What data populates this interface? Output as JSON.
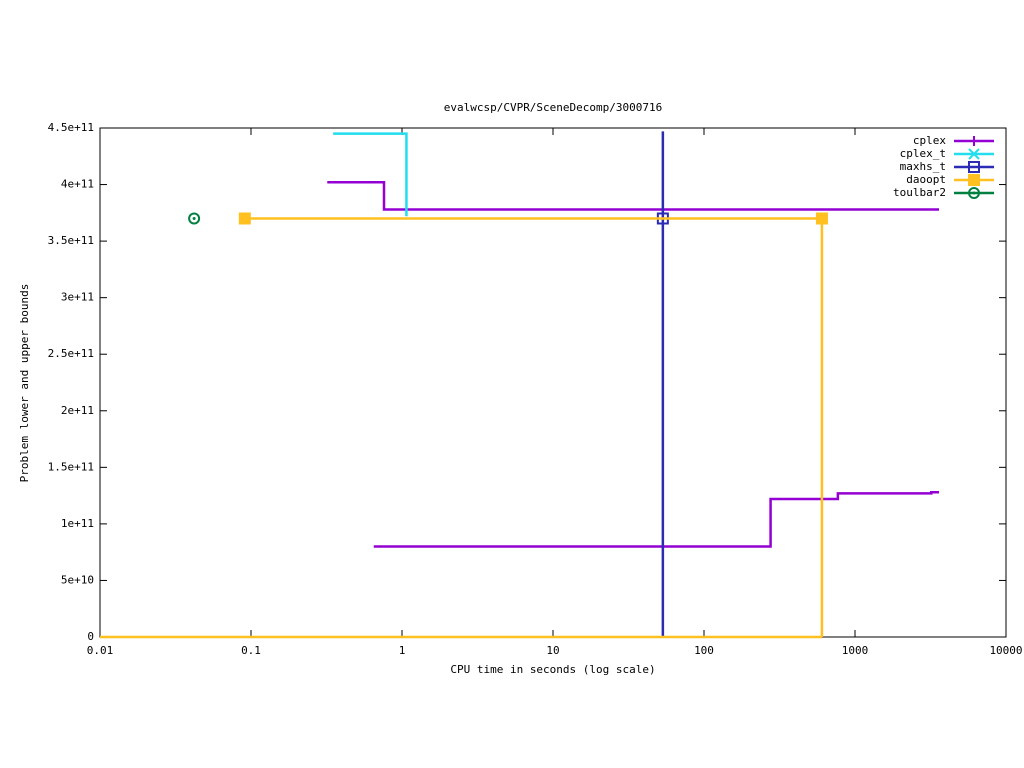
{
  "chart_data": {
    "type": "step",
    "title": "evalwcsp/CVPR/SceneDecomp/3000716",
    "x_label": "CPU time in seconds (log scale)",
    "y_label": "Problem lower and upper bounds",
    "x_log": true,
    "xlim": [
      0.01,
      10000
    ],
    "xticks": [
      0.01,
      0.1,
      1,
      10,
      100,
      1000,
      10000
    ],
    "ylim": [
      0,
      450000000000
    ],
    "yticks": [
      0,
      {
        "value": 50000000000,
        "label": "5e+10"
      },
      {
        "value": 100000000000,
        "label": "1e+11"
      },
      {
        "value": 150000000000,
        "label": "1.5e+11"
      },
      {
        "value": 200000000000,
        "label": "2e+11"
      },
      {
        "value": 250000000000,
        "label": "2.5e+11"
      },
      {
        "value": 300000000000,
        "label": "3e+11"
      },
      {
        "value": 350000000000,
        "label": "3.5e+11"
      },
      {
        "value": 400000000000,
        "label": "4e+11"
      },
      {
        "value": 450000000000,
        "label": "4.5e+11"
      }
    ],
    "legend": "top-right",
    "series": [
      {
        "name": "cplex",
        "color": "#9400d3",
        "marker": "plus",
        "x": [
          0.32,
          0.76,
          3600,
          null,
          0.65,
          276,
          770,
          3200,
          3600
        ],
        "values": [
          402000000000,
          378000000000,
          378000000000,
          null,
          80000000000,
          122000000000,
          127000000000,
          128000000000,
          128000000000
        ]
      },
      {
        "name": "cplex_t",
        "color": "#22ddee",
        "marker": "cross",
        "x": [
          0.35,
          1.07
        ],
        "values": [
          445000000000,
          372000000000
        ]
      },
      {
        "name": "maxhs_t",
        "color": "#2b2bb5",
        "marker": "square",
        "x": [
          53.4,
          53.4
        ],
        "values": [
          0,
          447000000000
        ],
        "markers": {
          "x": [
            53.4
          ],
          "values": [
            370000000000
          ]
        }
      },
      {
        "name": "daoopt",
        "color": "#ffc020",
        "marker": "filled-square",
        "x": [
          0.091,
          604,
          604,
          null,
          0.01,
          604
        ],
        "values": [
          370000000000,
          370000000000,
          0,
          null,
          0,
          0
        ],
        "markers": {
          "x": [
            0.091,
            604
          ],
          "values": [
            370000000000,
            370000000000
          ]
        }
      },
      {
        "name": "toulbar2",
        "color": "#008040",
        "marker": "circle",
        "x": [
          0.042
        ],
        "values": [
          370000000000
        ],
        "markers": {
          "x": [
            0.042
          ],
          "values": [
            370000000000
          ]
        }
      }
    ]
  }
}
